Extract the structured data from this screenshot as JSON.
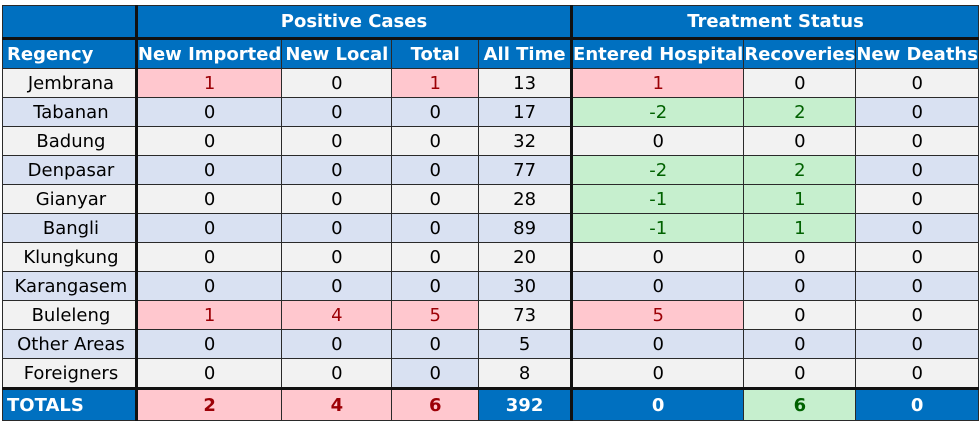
{
  "table": {
    "group_headers": {
      "positive_cases": "Positive Cases",
      "treatment_status": "Treatment Status"
    },
    "columns": [
      "Regency",
      "New Imported",
      "New Local",
      "Total",
      "All Time",
      "Entered Hospital",
      "Recoveries",
      "New Deaths"
    ],
    "rows": [
      {
        "region": "Jembrana",
        "new_imported": "1",
        "new_local": "0",
        "total": "1",
        "all_time": "13",
        "entered_hospital": "1",
        "recoveries": "0",
        "new_deaths": "0"
      },
      {
        "region": "Tabanan",
        "new_imported": "0",
        "new_local": "0",
        "total": "0",
        "all_time": "17",
        "entered_hospital": "-2",
        "recoveries": "2",
        "new_deaths": "0"
      },
      {
        "region": "Badung",
        "new_imported": "0",
        "new_local": "0",
        "total": "0",
        "all_time": "32",
        "entered_hospital": "0",
        "recoveries": "0",
        "new_deaths": "0"
      },
      {
        "region": "Denpasar",
        "new_imported": "0",
        "new_local": "0",
        "total": "0",
        "all_time": "77",
        "entered_hospital": "-2",
        "recoveries": "2",
        "new_deaths": "0"
      },
      {
        "region": "Gianyar",
        "new_imported": "0",
        "new_local": "0",
        "total": "0",
        "all_time": "28",
        "entered_hospital": "-1",
        "recoveries": "1",
        "new_deaths": "0"
      },
      {
        "region": "Bangli",
        "new_imported": "0",
        "new_local": "0",
        "total": "0",
        "all_time": "89",
        "entered_hospital": "-1",
        "recoveries": "1",
        "new_deaths": "0"
      },
      {
        "region": "Klungkung",
        "new_imported": "0",
        "new_local": "0",
        "total": "0",
        "all_time": "20",
        "entered_hospital": "0",
        "recoveries": "0",
        "new_deaths": "0"
      },
      {
        "region": "Karangasem",
        "new_imported": "0",
        "new_local": "0",
        "total": "0",
        "all_time": "30",
        "entered_hospital": "0",
        "recoveries": "0",
        "new_deaths": "0"
      },
      {
        "region": "Buleleng",
        "new_imported": "1",
        "new_local": "4",
        "total": "5",
        "all_time": "73",
        "entered_hospital": "5",
        "recoveries": "0",
        "new_deaths": "0"
      },
      {
        "region": "Other Areas",
        "new_imported": "0",
        "new_local": "0",
        "total": "0",
        "all_time": "5",
        "entered_hospital": "0",
        "recoveries": "0",
        "new_deaths": "0"
      },
      {
        "region": "Foreigners",
        "new_imported": "0",
        "new_local": "0",
        "total": "0",
        "all_time": "8",
        "entered_hospital": "0",
        "recoveries": "0",
        "new_deaths": "0"
      }
    ],
    "totals": {
      "region": "TOTALS",
      "new_imported": "2",
      "new_local": "4",
      "total": "6",
      "all_time": "392",
      "entered_hospital": "0",
      "recoveries": "6",
      "new_deaths": "0"
    },
    "colors": {
      "header_blue": "#0070C0",
      "row_light_gray": "#F2F2F2",
      "row_light_blue": "#D9E1F2",
      "increase_fill": "#FFC7CE",
      "increase_text": "#9C0006",
      "decrease_fill": "#C6EFCE",
      "decrease_text": "#006100"
    }
  }
}
